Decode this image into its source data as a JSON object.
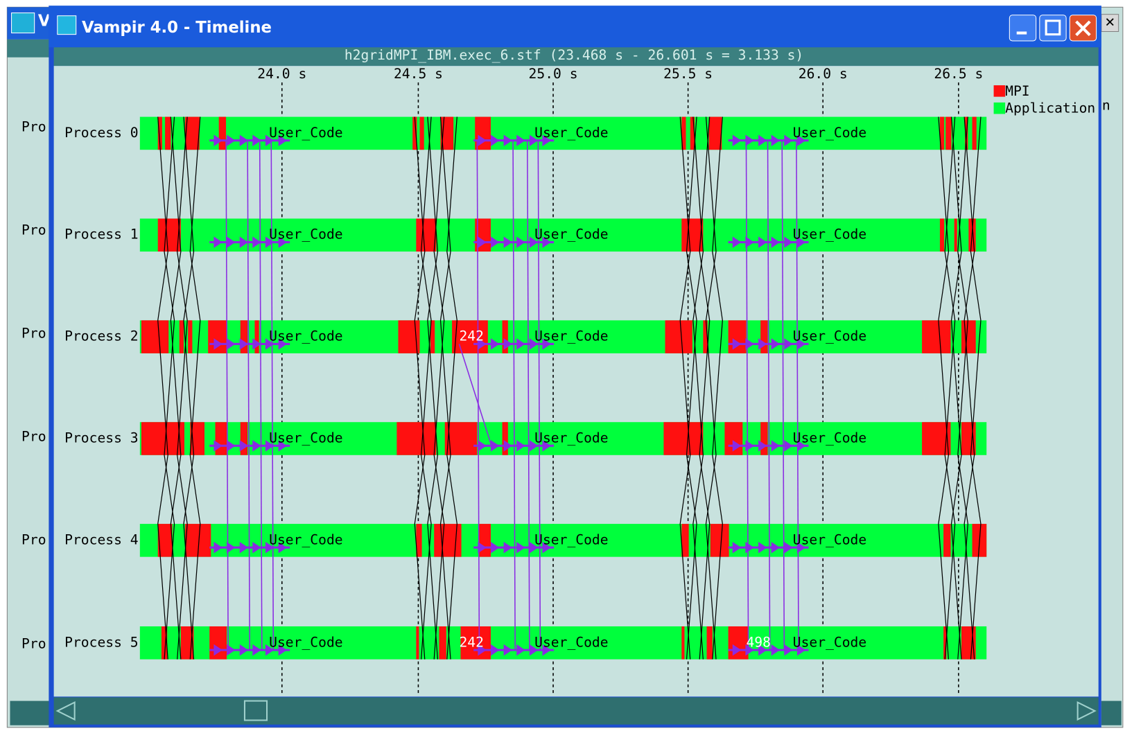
{
  "window": {
    "title": "Vampir 4.0 - Timeline",
    "subtitle": "h2gridMPI_IBM.exec_6.stf (23.468 s - 26.601 s = 3.133 s)"
  },
  "time_axis": [
    "24.0 s",
    "24.5 s",
    "25.0 s",
    "25.5 s",
    "26.0 s",
    "26.5 s"
  ],
  "legend": [
    "MPI",
    "Application"
  ],
  "rows": [
    {
      "label": "Process 0",
      "functions": [
        "User_Code",
        "User_Code",
        "User_Code"
      ]
    },
    {
      "label": "Process 1",
      "functions": [
        "User_Code",
        "User_Code",
        "User_Code"
      ]
    },
    {
      "label": "Process 2",
      "functions": [
        "User_Code",
        "User_Code",
        "User_Code"
      ],
      "counts": [
        "242"
      ]
    },
    {
      "label": "Process 3",
      "functions": [
        "User_Code",
        "User_Code",
        "User_Code"
      ]
    },
    {
      "label": "Process 4",
      "functions": [
        "User_Code",
        "User_Code",
        "User_Code"
      ]
    },
    {
      "label": "Process 5",
      "functions": [
        "User_Code",
        "User_Code",
        "User_Code"
      ],
      "counts": [
        "242",
        "498"
      ]
    }
  ],
  "background_window": {
    "title": "V",
    "row_labels": [
      "Pro",
      "Pro",
      "Pro",
      "Pro",
      "Pro",
      "Pro"
    ],
    "edge_text": "n"
  }
}
